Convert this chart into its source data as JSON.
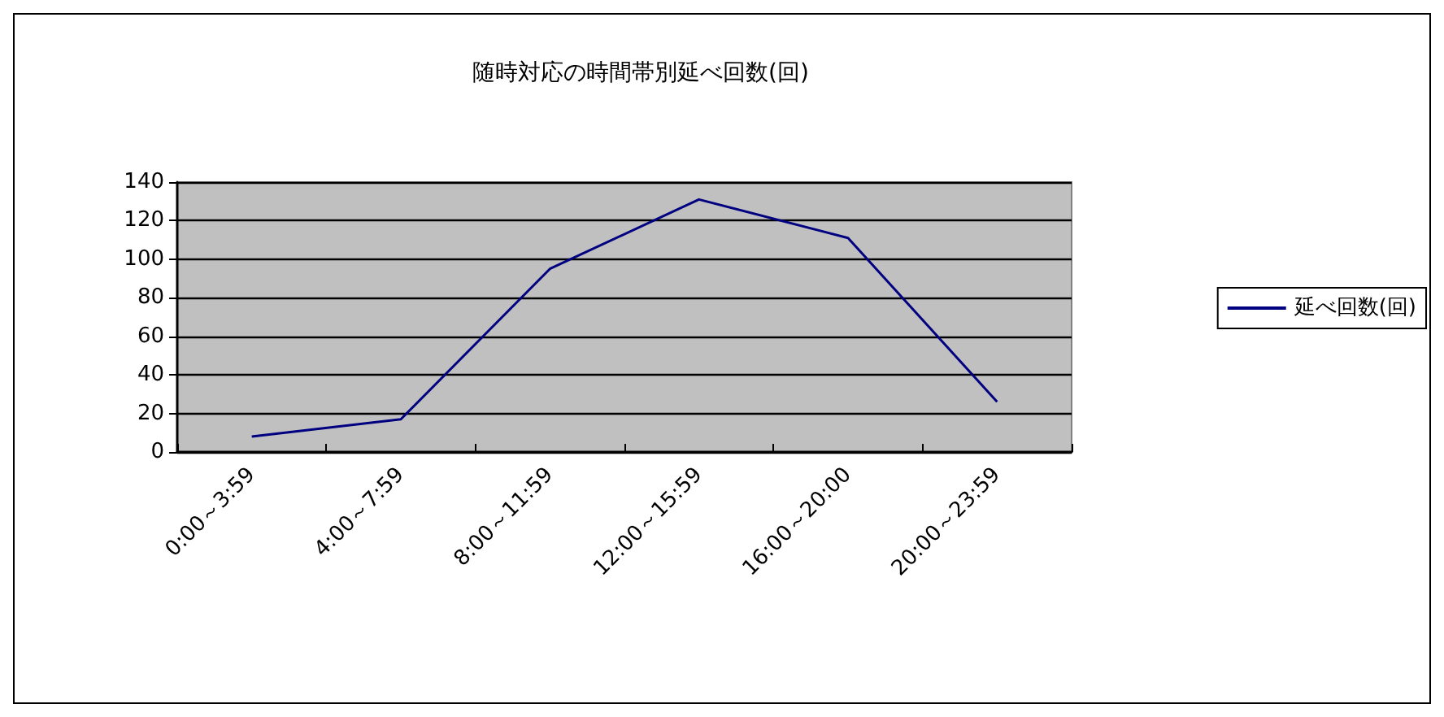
{
  "chart_data": {
    "type": "line",
    "title": "随時対応の時間帯別延べ回数(回)",
    "categories": [
      "0:00～3:59",
      "4:00～7:59",
      "8:00～11:59",
      "12:00～15:59",
      "16:00～20:00",
      "20:00～23:59"
    ],
    "series": [
      {
        "name": "延べ回数(回)",
        "color": "#000080",
        "values": [
          8,
          17,
          95,
          131,
          111,
          26
        ]
      }
    ],
    "ylim": [
      0,
      140
    ],
    "yticks": [
      0,
      20,
      40,
      60,
      80,
      100,
      120,
      140
    ],
    "grid": "y",
    "legend": "right",
    "marker": "none",
    "line_style": "solid"
  }
}
